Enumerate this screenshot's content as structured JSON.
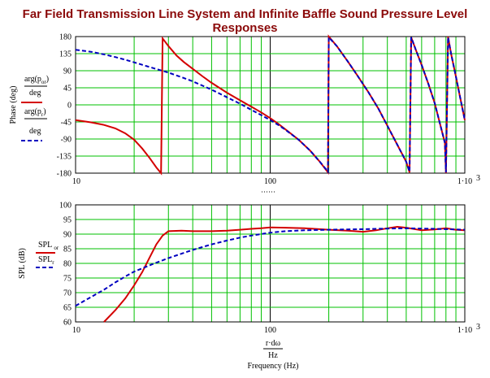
{
  "title": "Far Field Transmission Line System and Infinite Baffle Sound Pressure Level Responses",
  "colors": {
    "grid": "#00c000",
    "tl": "#d40000",
    "ib": "#0000c0",
    "title": "#8b0a0a"
  },
  "chart_data": [
    {
      "type": "line",
      "xscale": "log",
      "xlim": [
        10,
        1000
      ],
      "ylim": [
        -180,
        180
      ],
      "grid": true,
      "ylabel": "Phase (deg)",
      "xlabel": "",
      "x_ticks": [
        "10",
        "100",
        "1·10"
      ],
      "x_tick_exp": "3",
      "y_ticks": [
        "180",
        "135",
        "90",
        "45",
        "0",
        "-45",
        "-90",
        "-135",
        "-180"
      ],
      "legend": [
        {
          "text": "arg(p",
          "sub": "or",
          "suffix": ")",
          "den": "deg",
          "style": "solid"
        },
        {
          "text": "arg(p",
          "sub": "r",
          "suffix": ")",
          "den": "deg",
          "style": "dashed"
        }
      ],
      "series": [
        {
          "style": "solid",
          "x": [
            10,
            12,
            14,
            16,
            18,
            20,
            22,
            24,
            26,
            27.5,
            28,
            30,
            33,
            36,
            40,
            45,
            50,
            60,
            70,
            80,
            90,
            100,
            110,
            120,
            140,
            160,
            180,
            198,
            200,
            220,
            250,
            280,
            320,
            360,
            400,
            450,
            500,
            520,
            530,
            560,
            600,
            650,
            700,
            750,
            790,
            800,
            820,
            850,
            900,
            950,
            1000
          ],
          "y": [
            -40,
            -46,
            -53,
            -62,
            -75,
            -92,
            -115,
            -140,
            -165,
            -180,
            175,
            155,
            130,
            113,
            95,
            75,
            58,
            32,
            12,
            -5,
            -20,
            -35,
            -50,
            -65,
            -92,
            -120,
            -150,
            -178,
            180,
            155,
            115,
            78,
            33,
            -10,
            -55,
            -105,
            -150,
            -178,
            178,
            145,
            105,
            55,
            5,
            -55,
            -100,
            -180,
            180,
            135,
            75,
            15,
            -40
          ]
        },
        {
          "style": "dashed",
          "x": [
            10,
            12,
            14,
            16,
            18,
            20,
            25,
            30,
            35,
            40,
            50,
            60,
            70,
            80,
            90,
            100,
            110,
            120,
            140,
            160,
            180,
            198,
            200,
            220,
            250,
            280,
            320,
            360,
            400,
            450,
            500,
            520,
            530,
            560,
            600,
            650,
            700,
            750,
            790,
            800,
            820,
            850,
            900,
            950,
            1000
          ],
          "y": [
            145,
            140,
            133,
            126,
            119,
            112,
            97,
            85,
            73,
            62,
            40,
            20,
            3,
            -13,
            -27,
            -40,
            -53,
            -66,
            -92,
            -120,
            -150,
            -176,
            178,
            155,
            115,
            78,
            33,
            -10,
            -55,
            -105,
            -150,
            -176,
            178,
            145,
            105,
            55,
            5,
            -55,
            -100,
            -178,
            178,
            135,
            75,
            15,
            -40
          ]
        }
      ]
    },
    {
      "type": "line",
      "xscale": "log",
      "xlim": [
        10,
        1000
      ],
      "ylim": [
        60,
        100
      ],
      "grid": true,
      "ylabel": "SPL (dB)",
      "xlabel": "Frequency (Hz)",
      "x_ticks": [
        "10",
        "100",
        "1·10"
      ],
      "x_tick_exp": "3",
      "x_expr_num": "r·dω",
      "x_expr_den": "Hz",
      "y_ticks": [
        "100",
        "95",
        "90",
        "85",
        "80",
        "75",
        "70",
        "65",
        "60"
      ],
      "legend": [
        {
          "text": "SPL",
          "sub": "or",
          "style": "solid"
        },
        {
          "text": "SPL",
          "sub": "r",
          "style": "dashed"
        }
      ],
      "series": [
        {
          "style": "solid",
          "x": [
            14,
            16,
            18,
            20,
            22,
            24,
            26,
            28,
            30,
            35,
            40,
            50,
            60,
            70,
            80,
            90,
            100,
            120,
            150,
            200,
            250,
            300,
            350,
            400,
            450,
            500,
            600,
            700,
            800,
            900,
            1000
          ],
          "y": [
            60,
            64,
            68,
            72.5,
            77,
            82,
            86.5,
            89.5,
            91,
            91.2,
            91,
            91,
            91.2,
            91.5,
            91.8,
            92,
            92.3,
            92.2,
            92,
            91.5,
            91.2,
            90.8,
            91.3,
            92,
            92.5,
            92.2,
            91.3,
            91.6,
            92,
            91.5,
            91.3
          ]
        },
        {
          "style": "dashed",
          "x": [
            10,
            12,
            14,
            16,
            18,
            20,
            25,
            30,
            35,
            40,
            50,
            60,
            70,
            80,
            100,
            120,
            150,
            200,
            250,
            300,
            350,
            400,
            500,
            600,
            700,
            800,
            1000
          ],
          "y": [
            65.5,
            68.5,
            71,
            73.5,
            75.5,
            77.2,
            79.8,
            81.8,
            83.3,
            84.6,
            86.5,
            87.8,
            88.8,
            89.5,
            90.5,
            91,
            91.3,
            91.5,
            91.6,
            91.7,
            91.8,
            91.9,
            92,
            91.9,
            91.8,
            91.7,
            91.5
          ]
        }
      ]
    }
  ]
}
